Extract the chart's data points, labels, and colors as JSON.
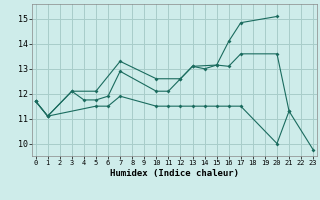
{
  "xlabel": "Humidex (Indice chaleur)",
  "xlim": [
    -0.3,
    23.3
  ],
  "ylim": [
    9.5,
    15.6
  ],
  "yticks": [
    10,
    11,
    12,
    13,
    14,
    15
  ],
  "xticks": [
    0,
    1,
    2,
    3,
    4,
    5,
    6,
    7,
    8,
    9,
    10,
    11,
    12,
    13,
    14,
    15,
    16,
    17,
    18,
    19,
    20,
    21,
    22,
    23
  ],
  "bg_color": "#ceecea",
  "grid_color": "#a8cdc9",
  "line_color": "#1a6b5e",
  "line1_x": [
    0,
    1,
    3,
    5,
    7,
    10,
    12,
    13,
    15,
    16,
    17,
    20
  ],
  "line1_y": [
    11.7,
    11.1,
    12.1,
    12.1,
    13.3,
    12.6,
    12.6,
    13.1,
    13.15,
    14.1,
    14.85,
    15.1
  ],
  "line2_x": [
    0,
    1,
    3,
    4,
    5,
    6,
    7,
    10,
    11,
    12,
    13,
    14,
    15,
    16,
    17,
    20,
    21
  ],
  "line2_y": [
    11.7,
    11.1,
    12.1,
    11.75,
    11.75,
    11.9,
    12.9,
    12.1,
    12.1,
    12.6,
    13.1,
    13.0,
    13.15,
    13.1,
    13.6,
    13.6,
    11.3
  ],
  "line3_x": [
    0,
    1,
    5,
    6,
    7,
    10,
    11,
    12,
    13,
    14,
    15,
    16,
    17,
    20,
    21,
    23
  ],
  "line3_y": [
    11.7,
    11.1,
    11.5,
    11.5,
    11.9,
    11.5,
    11.5,
    11.5,
    11.5,
    11.5,
    11.5,
    11.5,
    11.5,
    10.0,
    11.3,
    9.75
  ]
}
